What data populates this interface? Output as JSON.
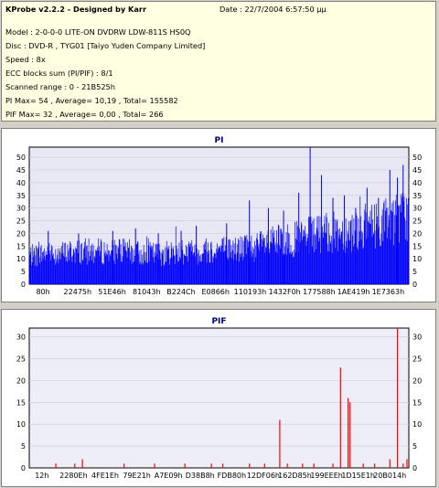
{
  "info": {
    "title": "KProbe v2.2.2 - Designed by Karr",
    "date": "Date : 22/7/2004 6:57:50 μμ",
    "lines": [
      "Model : 2-0-0-0 LITE-ON DVDRW LDW-811S   HS0Q",
      "Disc : DVD-R , TYG01 [Taiyo Yuden Company Limited]",
      "Speed : 8x",
      "ECC blocks sum (PI/PIF) : 8/1",
      "Scanned range : 0 - 21B525h",
      "PI Max= 54 , Average= 10,19 , Total= 155582",
      "PIF Max= 32 , Average= 0,00 , Total= 266"
    ]
  },
  "colors": {
    "pi_series": "#0000ff",
    "pif_series": "#ff0000",
    "pi_plot_bg": "#e8e8f4",
    "pif_plot_bg": "#eeeef8",
    "title": "#000080"
  },
  "chart_data": [
    {
      "type": "bar",
      "title": "PI",
      "xlabel": "",
      "ylabel": "",
      "ylim": [
        0,
        54
      ],
      "yticks": [
        0,
        5,
        10,
        15,
        20,
        25,
        30,
        35,
        40,
        45,
        50
      ],
      "xtick_labels": [
        "80h",
        "22475h",
        "51E46h",
        "81043h",
        "B224Ch",
        "E0866h",
        "110193h",
        "1432F0h",
        "177588h",
        "1AE419h",
        "1E7363h"
      ],
      "x_range": "0h - 21B525h",
      "series": [
        {
          "values": [
            [
              0.0,
              12
            ],
            [
              0.04,
              13
            ],
            [
              0.08,
              13
            ],
            [
              0.12,
              14
            ],
            [
              0.16,
              14
            ],
            [
              0.2,
              14
            ],
            [
              0.25,
              14
            ],
            [
              0.3,
              13
            ],
            [
              0.35,
              13
            ],
            [
              0.4,
              14
            ],
            [
              0.45,
              14
            ],
            [
              0.5,
              15
            ],
            [
              0.55,
              15
            ],
            [
              0.6,
              16
            ],
            [
              0.65,
              18
            ],
            [
              0.7,
              19
            ],
            [
              0.75,
              21
            ],
            [
              0.8,
              22
            ],
            [
              0.85,
              23
            ],
            [
              0.9,
              25
            ],
            [
              0.95,
              27
            ],
            [
              1.0,
              30
            ]
          ],
          "peaks": [
            [
              0.05,
              21
            ],
            [
              0.13,
              20
            ],
            [
              0.22,
              21
            ],
            [
              0.28,
              22
            ],
            [
              0.34,
              20
            ],
            [
              0.4,
              21
            ],
            [
              0.44,
              23
            ],
            [
              0.52,
              24
            ],
            [
              0.58,
              33
            ],
            [
              0.63,
              30
            ],
            [
              0.67,
              29
            ],
            [
              0.71,
              36
            ],
            [
              0.74,
              54
            ],
            [
              0.77,
              43
            ],
            [
              0.8,
              34
            ],
            [
              0.83,
              35
            ],
            [
              0.86,
              30
            ],
            [
              0.89,
              38
            ],
            [
              0.92,
              34
            ],
            [
              0.95,
              45
            ],
            [
              0.97,
              42
            ],
            [
              0.985,
              47
            ]
          ]
        }
      ]
    },
    {
      "type": "bar",
      "title": "PIF",
      "xlabel": "",
      "ylabel": "",
      "ylim": [
        0,
        32
      ],
      "yticks": [
        0,
        5,
        10,
        15,
        20,
        25,
        30
      ],
      "xtick_labels": [
        "12h",
        "2280Eh",
        "4FE1Eh",
        "79E21h",
        "A7E09h",
        "D38B8h",
        "FDB80h",
        "12DF06h",
        "162D85h",
        "199EEEh",
        "1D15E1h",
        "20B014h"
      ],
      "x_range": "0h - 21B525h",
      "series": [
        {
          "values": [
            [
              0.07,
              1
            ],
            [
              0.12,
              1
            ],
            [
              0.14,
              2
            ],
            [
              0.25,
              1
            ],
            [
              0.33,
              1
            ],
            [
              0.41,
              1
            ],
            [
              0.48,
              1
            ],
            [
              0.51,
              1
            ],
            [
              0.58,
              1
            ],
            [
              0.62,
              1
            ],
            [
              0.66,
              11
            ],
            [
              0.68,
              1
            ],
            [
              0.72,
              1
            ],
            [
              0.75,
              1
            ],
            [
              0.8,
              1
            ],
            [
              0.82,
              23
            ],
            [
              0.84,
              16
            ],
            [
              0.845,
              15
            ],
            [
              0.88,
              1
            ],
            [
              0.91,
              1
            ],
            [
              0.95,
              2
            ],
            [
              0.97,
              32
            ],
            [
              0.985,
              1
            ],
            [
              0.995,
              2
            ]
          ]
        }
      ]
    }
  ]
}
